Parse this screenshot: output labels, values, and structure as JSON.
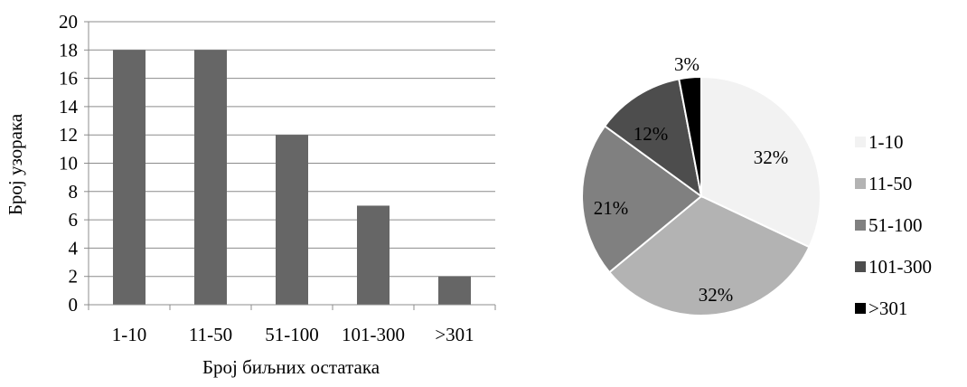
{
  "chart_data": [
    {
      "type": "bar",
      "title": "",
      "xlabel": "Број биљних остатака",
      "ylabel": "Број  узорака",
      "categories": [
        "1-10",
        "11-50",
        "51-100",
        "101-300",
        ">301"
      ],
      "values": [
        18,
        18,
        12,
        7,
        2
      ],
      "ylim": [
        0,
        20
      ],
      "yticks": [
        "0",
        "2",
        "4",
        "6",
        "8",
        "10",
        "12",
        "14",
        "16",
        "18",
        "20"
      ],
      "grid": true,
      "bar_color": "#666666"
    },
    {
      "type": "pie",
      "title": "",
      "labels": [
        "1-10",
        "11-50",
        "51-100",
        "101-300",
        ">301"
      ],
      "values": [
        32,
        32,
        21,
        12,
        3
      ],
      "data_labels": [
        "32%",
        "32%",
        "21%",
        "12%",
        "3%"
      ],
      "colors": [
        "#f2f2f2",
        "#b3b3b3",
        "#808080",
        "#4d4d4d",
        "#000000"
      ],
      "legend_position": "right"
    }
  ]
}
